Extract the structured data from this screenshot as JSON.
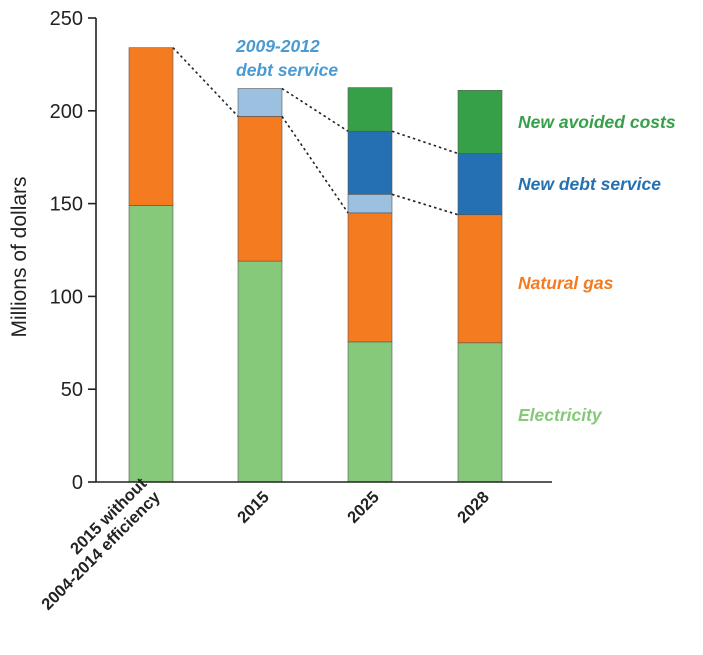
{
  "chart_data": {
    "type": "bar",
    "stacked": true,
    "title": "",
    "xlabel": "",
    "ylabel": "Millions of dollars",
    "ylim": [
      0,
      250
    ],
    "yticks": [
      0,
      50,
      100,
      150,
      200,
      250
    ],
    "grid": false,
    "categories": [
      [
        "2015 without",
        "2004-2014 efficiency"
      ],
      [
        "2015"
      ],
      [
        "2025"
      ],
      [
        "2028"
      ]
    ],
    "series": [
      {
        "name": "Electricity",
        "color": "#86c97b",
        "label_color": "#86c97b",
        "values": [
          149,
          119,
          75.5,
          75
        ]
      },
      {
        "name": "Natural gas",
        "color": "#f47b20",
        "label_color": "#f47b20",
        "values": [
          85,
          78,
          69.5,
          69
        ]
      },
      {
        "name": "2009-2012 debt service",
        "color": "#9cc0e0",
        "label_color": "#4a9ad4",
        "values": [
          0,
          15,
          10,
          0
        ]
      },
      {
        "name": "New debt service",
        "color": "#2470b3",
        "label_color": "#2470b3",
        "values": [
          0,
          0,
          34,
          33
        ]
      },
      {
        "name": "New avoided costs",
        "color": "#36a048",
        "label_color": "#36a048",
        "values": [
          0,
          0,
          23.5,
          34
        ]
      }
    ],
    "series_labels": {
      "debt_2009_2012": [
        "2009-2012",
        "debt service"
      ],
      "new_avoided": "New avoided costs",
      "new_debt": "New debt service",
      "natural_gas": "Natural gas",
      "electricity": "Electricity"
    },
    "connectors": "dotted lines link the top of each segment to the same segment in the next bar"
  }
}
